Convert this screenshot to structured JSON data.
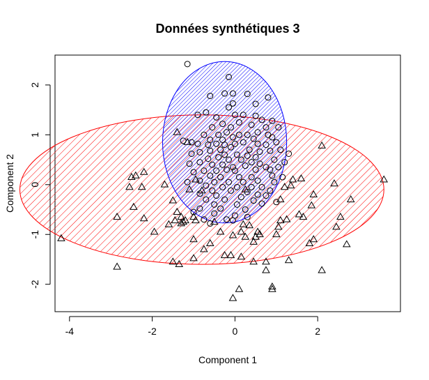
{
  "chart_data": {
    "type": "scatter",
    "title": "Données synthétiques 3",
    "xlabel": "Component 1",
    "ylabel": "Component 2",
    "xlim": [
      -4.35,
      4.0
    ],
    "ylim": [
      -2.55,
      2.6
    ],
    "xticks": [
      "-4",
      "-2",
      "0",
      "2"
    ],
    "yticks": [
      "-2",
      "-1",
      "0",
      "1",
      "2"
    ],
    "grid": false,
    "legend": "none",
    "colors": {
      "cluster_circle": "#0000ff",
      "cluster_triangle": "#ff0000",
      "points": "#000000"
    },
    "ellipses": [
      {
        "cluster": "triangle",
        "color": "#ff0000",
        "center": [
          -0.8,
          -0.1
        ],
        "semi_axes": [
          4.4,
          1.5
        ],
        "hatch_angle_deg": 45
      },
      {
        "cluster": "circle",
        "color": "#0000ff",
        "center": [
          -0.25,
          0.85
        ],
        "semi_axes": [
          1.5,
          1.62
        ],
        "hatch_angle_deg": 45
      }
    ],
    "series": [
      {
        "marker": "circle",
        "points": [
          [
            -1.15,
            2.42
          ],
          [
            -0.15,
            2.16
          ],
          [
            -0.25,
            1.83
          ],
          [
            -0.05,
            1.83
          ],
          [
            0.3,
            1.82
          ],
          [
            -0.6,
            1.78
          ],
          [
            0.8,
            1.75
          ],
          [
            -0.05,
            1.63
          ],
          [
            -0.15,
            1.55
          ],
          [
            0.5,
            1.62
          ],
          [
            -0.7,
            1.45
          ],
          [
            -0.9,
            1.4
          ],
          [
            -0.45,
            1.35
          ],
          [
            0.0,
            1.4
          ],
          [
            0.2,
            1.4
          ],
          [
            0.5,
            1.38
          ],
          [
            0.65,
            1.3
          ],
          [
            0.9,
            1.28
          ],
          [
            -0.3,
            1.22
          ],
          [
            0.1,
            1.25
          ],
          [
            0.4,
            1.2
          ],
          [
            0.75,
            1.15
          ],
          [
            1.05,
            1.15
          ],
          [
            -0.55,
            1.15
          ],
          [
            -0.1,
            1.15
          ],
          [
            -0.2,
            1.05
          ],
          [
            0.1,
            1.0
          ],
          [
            0.3,
            1.0
          ],
          [
            0.55,
            1.05
          ],
          [
            0.8,
            1.0
          ],
          [
            -0.75,
            1.0
          ],
          [
            -0.4,
            1.0
          ],
          [
            -0.6,
            0.9
          ],
          [
            -0.05,
            0.95
          ],
          [
            -0.3,
            0.9
          ],
          [
            0.45,
            0.92
          ],
          [
            0.9,
            0.95
          ],
          [
            -1.25,
            0.88
          ],
          [
            -1.05,
            0.85
          ],
          [
            -0.9,
            0.82
          ],
          [
            -0.65,
            0.8
          ],
          [
            -0.45,
            0.82
          ],
          [
            -0.25,
            0.8
          ],
          [
            0.0,
            0.82
          ],
          [
            0.2,
            0.85
          ],
          [
            0.55,
            0.82
          ],
          [
            0.75,
            0.8
          ],
          [
            1.0,
            0.85
          ],
          [
            -0.1,
            0.75
          ],
          [
            -0.35,
            0.7
          ],
          [
            -0.6,
            0.68
          ],
          [
            -0.85,
            0.65
          ],
          [
            0.35,
            0.7
          ],
          [
            0.6,
            0.66
          ],
          [
            0.85,
            0.68
          ],
          [
            1.1,
            0.7
          ],
          [
            -1.05,
            0.62
          ],
          [
            -0.25,
            0.6
          ],
          [
            0.05,
            0.6
          ],
          [
            0.3,
            0.58
          ],
          [
            0.5,
            0.55
          ],
          [
            1.3,
            0.62
          ],
          [
            -0.65,
            0.52
          ],
          [
            -0.4,
            0.55
          ],
          [
            -0.15,
            0.5
          ],
          [
            0.15,
            0.5
          ],
          [
            0.4,
            0.45
          ],
          [
            0.6,
            0.42
          ],
          [
            0.95,
            0.5
          ],
          [
            1.2,
            0.45
          ],
          [
            -0.85,
            0.45
          ],
          [
            -1.1,
            0.42
          ],
          [
            -0.55,
            0.4
          ],
          [
            -0.3,
            0.4
          ],
          [
            -0.05,
            0.35
          ],
          [
            0.25,
            0.38
          ],
          [
            0.75,
            0.35
          ],
          [
            1.05,
            0.35
          ],
          [
            -0.75,
            0.28
          ],
          [
            -0.45,
            0.28
          ],
          [
            -0.2,
            0.3
          ],
          [
            0.0,
            0.28
          ],
          [
            0.5,
            0.3
          ],
          [
            0.85,
            0.3
          ],
          [
            -1.0,
            0.25
          ],
          [
            -0.6,
            0.18
          ],
          [
            -0.35,
            0.15
          ],
          [
            0.1,
            0.15
          ],
          [
            0.4,
            0.15
          ],
          [
            0.9,
            0.18
          ],
          [
            1.15,
            0.15
          ],
          [
            -0.85,
            0.08
          ],
          [
            -0.5,
            0.05
          ],
          [
            -0.15,
            0.05
          ],
          [
            0.2,
            0.05
          ],
          [
            0.55,
            0.08
          ],
          [
            0.95,
            0.05
          ],
          [
            -1.15,
            0.05
          ],
          [
            -0.7,
            -0.02
          ],
          [
            -0.3,
            -0.05
          ],
          [
            0.05,
            -0.05
          ],
          [
            0.4,
            -0.05
          ],
          [
            0.65,
            -0.05
          ],
          [
            -0.55,
            -0.12
          ],
          [
            -0.1,
            -0.12
          ],
          [
            0.3,
            -0.15
          ],
          [
            0.85,
            -0.12
          ],
          [
            -0.85,
            -0.18
          ],
          [
            -0.45,
            -0.22
          ],
          [
            0.15,
            -0.25
          ],
          [
            0.55,
            -0.2
          ],
          [
            0.75,
            -0.22
          ],
          [
            -0.7,
            -0.3
          ],
          [
            -0.25,
            -0.3
          ],
          [
            0.45,
            -0.32
          ],
          [
            -0.5,
            -0.4
          ],
          [
            0.05,
            -0.4
          ],
          [
            0.65,
            -0.38
          ],
          [
            1.0,
            -0.35
          ],
          [
            -0.85,
            -0.48
          ],
          [
            -0.35,
            -0.48
          ],
          [
            0.25,
            -0.5
          ],
          [
            -1.0,
            -0.55
          ],
          [
            -0.5,
            -0.58
          ],
          [
            0.0,
            -0.62
          ],
          [
            0.3,
            -0.65
          ],
          [
            -0.75,
            -0.7
          ],
          [
            -0.2,
            -0.7
          ],
          [
            -0.05,
            -0.72
          ],
          [
            -0.6,
            -0.78
          ]
        ]
      },
      {
        "marker": "triangle",
        "points": [
          [
            -1.4,
            1.05
          ],
          [
            -1.15,
            0.85
          ],
          [
            2.1,
            0.78
          ],
          [
            -2.4,
            0.18
          ],
          [
            -2.5,
            0.15
          ],
          [
            -2.2,
            0.25
          ],
          [
            -0.95,
            0.1
          ],
          [
            -1.7,
            0.0
          ],
          [
            -2.25,
            -0.05
          ],
          [
            -2.55,
            -0.05
          ],
          [
            1.35,
            -0.02
          ],
          [
            1.4,
            0.1
          ],
          [
            1.6,
            0.12
          ],
          [
            2.4,
            0.02
          ],
          [
            3.6,
            0.1
          ],
          [
            -1.1,
            -0.1
          ],
          [
            -0.8,
            -0.12
          ],
          [
            0.25,
            -0.1
          ],
          [
            1.2,
            -0.05
          ],
          [
            -1.5,
            -0.32
          ],
          [
            1.9,
            -0.2
          ],
          [
            1.1,
            -0.3
          ],
          [
            2.8,
            -0.3
          ],
          [
            -2.45,
            -0.45
          ],
          [
            1.85,
            -0.42
          ],
          [
            -1.4,
            -0.55
          ],
          [
            -1.3,
            -0.65
          ],
          [
            -1.45,
            -0.72
          ],
          [
            -1.3,
            -0.78
          ],
          [
            -1.25,
            -0.75
          ],
          [
            -1.2,
            -0.72
          ],
          [
            -1.0,
            -0.65
          ],
          [
            -2.85,
            -0.65
          ],
          [
            -2.2,
            -0.68
          ],
          [
            -1.6,
            -0.8
          ],
          [
            1.55,
            -0.6
          ],
          [
            1.65,
            -0.65
          ],
          [
            2.55,
            -0.65
          ],
          [
            1.1,
            -0.72
          ],
          [
            1.25,
            -0.7
          ],
          [
            -0.95,
            -0.72
          ],
          [
            -0.5,
            -0.75
          ],
          [
            0.2,
            -0.8
          ],
          [
            0.35,
            -0.82
          ],
          [
            1.05,
            -0.85
          ],
          [
            2.45,
            -0.85
          ],
          [
            -1.95,
            -0.95
          ],
          [
            -0.35,
            -0.95
          ],
          [
            0.15,
            -0.95
          ],
          [
            0.55,
            -0.95
          ],
          [
            -0.05,
            -1.02
          ],
          [
            0.25,
            -1.05
          ],
          [
            0.5,
            -1.05
          ],
          [
            0.6,
            -1.0
          ],
          [
            1.0,
            -1.0
          ],
          [
            1.9,
            -1.1
          ],
          [
            1.8,
            -1.18
          ],
          [
            2.7,
            -1.2
          ],
          [
            -4.2,
            -1.08
          ],
          [
            -1.0,
            -1.1
          ],
          [
            -0.6,
            -1.18
          ],
          [
            0.45,
            -1.15
          ],
          [
            -0.75,
            -1.3
          ],
          [
            -0.25,
            -1.42
          ],
          [
            -0.1,
            -1.42
          ],
          [
            0.15,
            -1.45
          ],
          [
            -1.0,
            -1.48
          ],
          [
            -1.5,
            -1.55
          ],
          [
            -1.35,
            -1.6
          ],
          [
            0.75,
            -1.55
          ],
          [
            1.3,
            -1.52
          ],
          [
            -2.85,
            -1.65
          ],
          [
            0.45,
            -1.55
          ],
          [
            0.75,
            -1.72
          ],
          [
            2.1,
            -1.72
          ],
          [
            0.9,
            -2.05
          ],
          [
            0.9,
            -2.1
          ],
          [
            0.1,
            -2.1
          ],
          [
            -0.05,
            -2.28
          ]
        ]
      }
    ]
  }
}
